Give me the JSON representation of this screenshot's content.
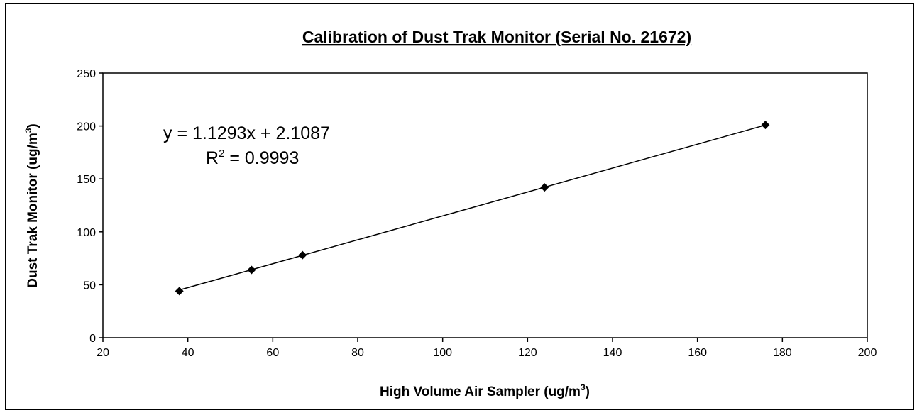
{
  "chart_data": {
    "type": "scatter",
    "title": "Calibration of Dust Trak Monitor (Serial No. 21672)",
    "x_label": {
      "text": "High Volume Air Sampler (ug/m",
      "sup": "3",
      "tail": ")"
    },
    "y_label": {
      "text": "Dust Trak Monitor (ug/m",
      "sup": "3",
      "tail": ")"
    },
    "series": [
      {
        "color": "#000000",
        "marker": "diamond",
        "x": [
          38,
          55,
          67,
          124,
          176
        ],
        "values": [
          44,
          64,
          78,
          142,
          201
        ]
      }
    ],
    "trendline": {
      "slope": 1.1293,
      "intercept": 2.1087,
      "equation": "y = 1.1293x + 2.1087",
      "r2": {
        "text": "R",
        "sup": "2",
        "tail": " = 0.9993"
      }
    },
    "xlim": [
      20,
      200
    ],
    "xticks": [
      20,
      40,
      60,
      80,
      100,
      120,
      140,
      160,
      180,
      200
    ],
    "ylim": [
      0,
      250
    ],
    "yticks": [
      0,
      50,
      100,
      150,
      200,
      250
    ],
    "grid": false
  }
}
